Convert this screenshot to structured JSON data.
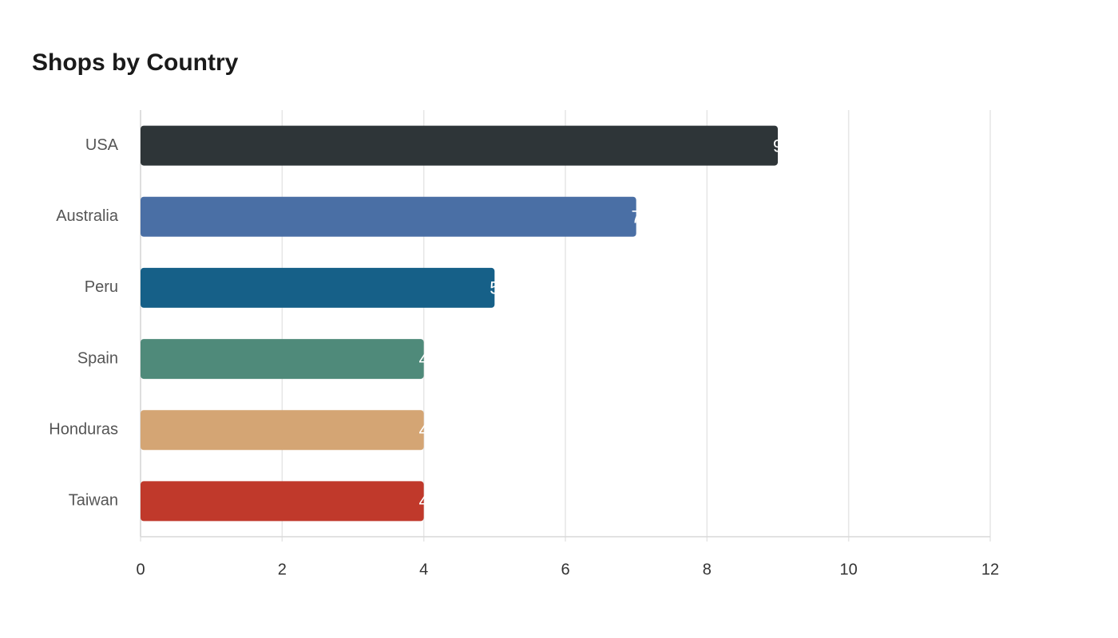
{
  "chart_data": {
    "type": "hbar",
    "title": "Shops by Country",
    "categories": [
      "USA",
      "Australia",
      "Peru",
      "Spain",
      "Honduras",
      "Taiwan"
    ],
    "values": [
      9,
      7,
      5,
      4,
      4,
      4
    ],
    "colors": [
      "#2e3538",
      "#4a6fa5",
      "#166088",
      "#4f8a7a",
      "#d4a574",
      "#c0392b"
    ],
    "xlim": [
      0,
      12
    ],
    "xticks": [
      0,
      2,
      4,
      6,
      8,
      10,
      12
    ],
    "grid": true
  }
}
